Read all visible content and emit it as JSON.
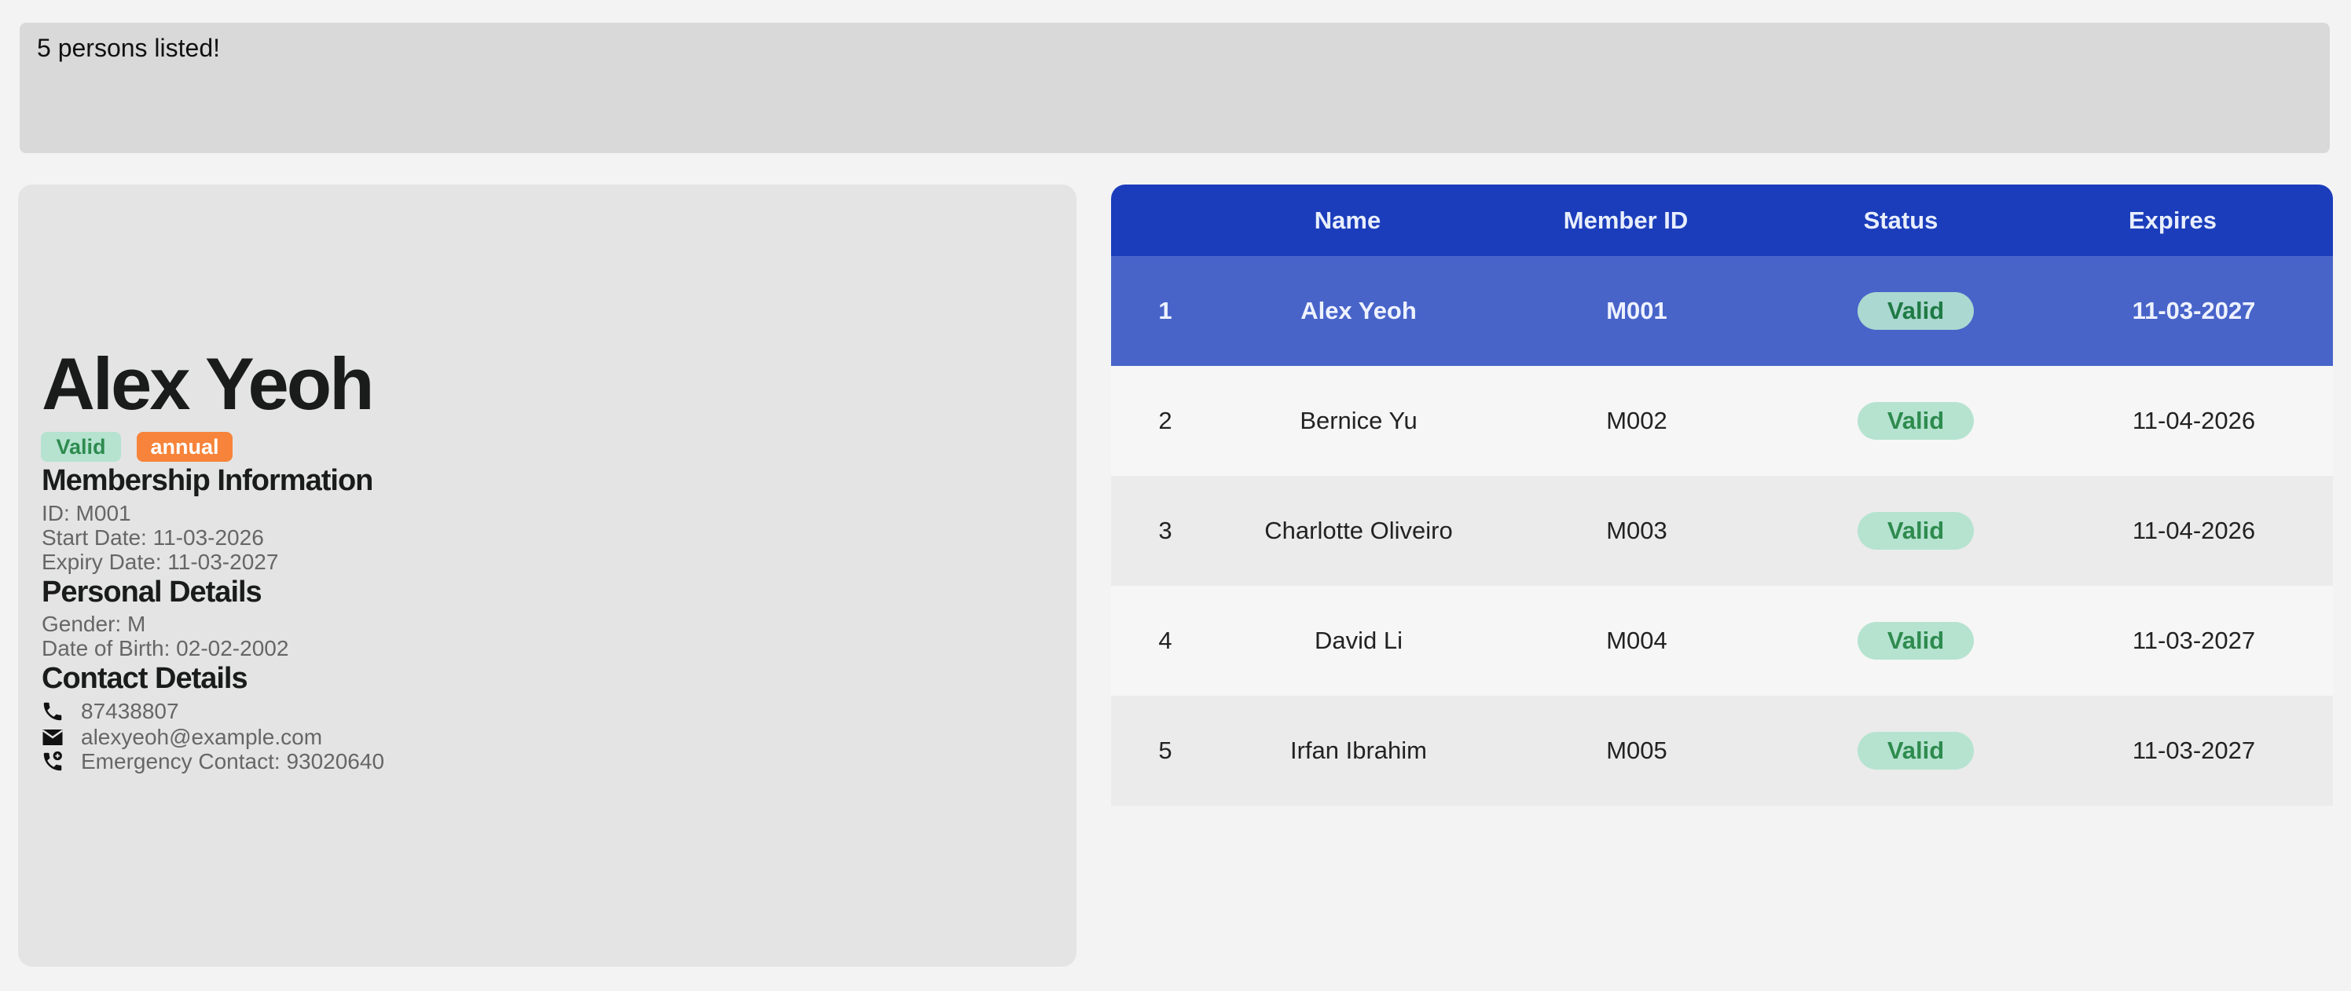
{
  "result_message": "5 persons listed!",
  "detail": {
    "name": "Alex Yeoh",
    "status_badge": "Valid",
    "plan_badge": "annual",
    "membership_heading": "Membership Information",
    "id": "ID: M001",
    "start_date": "Start Date: 11-03-2026",
    "expiry_date": "Expiry Date: 11-03-2027",
    "personal_heading": "Personal Details",
    "gender": "Gender: M",
    "dob": "Date of Birth: 02-02-2002",
    "contact_heading": "Contact Details",
    "phone": "87438807",
    "email": "alexyeoh@example.com",
    "emergency": "Emergency Contact: 93020640",
    "icons": [
      "phone-icon",
      "mail-icon",
      "emergency-phone-icon"
    ]
  },
  "table": {
    "headers": [
      "",
      "Name",
      "Member ID",
      "Status",
      "Expires"
    ],
    "rows": [
      {
        "index": "1",
        "name": "Alex Yeoh",
        "id": "M001",
        "status": "Valid",
        "expires": "11-03-2027"
      },
      {
        "index": "2",
        "name": "Bernice Yu",
        "id": "M002",
        "status": "Valid",
        "expires": "11-04-2026"
      },
      {
        "index": "3",
        "name": "Charlotte Oliveiro",
        "id": "M003",
        "status": "Valid",
        "expires": "11-04-2026"
      },
      {
        "index": "4",
        "name": "David Li",
        "id": "M004",
        "status": "Valid",
        "expires": "11-03-2027"
      },
      {
        "index": "5",
        "name": "Irfan Ibrahim",
        "id": "M005",
        "status": "Valid",
        "expires": "11-03-2027"
      }
    ],
    "selected_row": 1
  },
  "colors": {
    "header": "#1b3dbb",
    "selected": "#4864c9",
    "valid_bg": "#b5e3d0",
    "valid_text": "#2e8b4e",
    "annual": "#f7843a"
  }
}
